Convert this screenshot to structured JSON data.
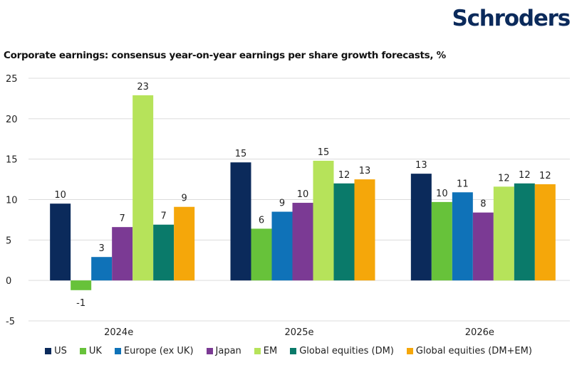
{
  "brand": {
    "logo_text": "Schroders",
    "color": "#0b2a5b"
  },
  "chart_data": {
    "type": "bar",
    "title": "Corporate earnings: consensus year-on-year earnings per share growth forecasts, %",
    "xlabel": "",
    "ylabel": "",
    "ylim": [
      -5,
      25
    ],
    "yticks": [
      25,
      20,
      15,
      10,
      5,
      0,
      -5
    ],
    "grid": true,
    "legend_position": "bottom",
    "categories": [
      "2024e",
      "2025e",
      "2026e"
    ],
    "series": [
      {
        "name": "US",
        "color": "#0b2a5b",
        "values": [
          9.5,
          14.6,
          13.2
        ],
        "labels": [
          "10",
          "15",
          "13"
        ]
      },
      {
        "name": "UK",
        "color": "#67c23a",
        "values": [
          -1.2,
          6.4,
          9.7
        ],
        "labels": [
          "-1",
          "6",
          "10"
        ]
      },
      {
        "name": "Europe (ex UK)",
        "color": "#0f72b8",
        "values": [
          2.9,
          8.5,
          10.9
        ],
        "labels": [
          "3",
          "9",
          "11"
        ]
      },
      {
        "name": "Japan",
        "color": "#7b3a94",
        "values": [
          6.6,
          9.6,
          8.4
        ],
        "labels": [
          "7",
          "10",
          "8"
        ]
      },
      {
        "name": "EM",
        "color": "#b6e35a",
        "values": [
          22.9,
          14.8,
          11.6
        ],
        "labels": [
          "23",
          "15",
          "12"
        ]
      },
      {
        "name": "Global equities (DM)",
        "color": "#0a7a6a",
        "values": [
          6.9,
          12.0,
          12.0
        ],
        "labels": [
          "7",
          "12",
          "12"
        ]
      },
      {
        "name": "Global equities (DM+EM)",
        "color": "#f5a70a",
        "values": [
          9.1,
          12.5,
          11.9
        ],
        "labels": [
          "9",
          "13",
          "12"
        ]
      }
    ]
  }
}
